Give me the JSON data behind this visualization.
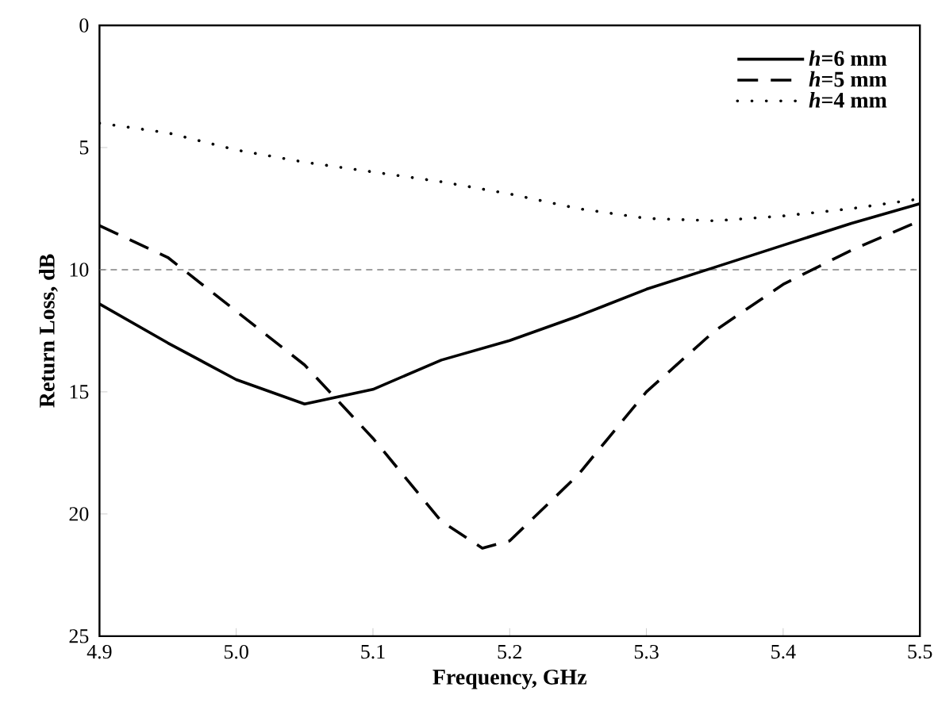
{
  "chart_data": {
    "type": "line",
    "xlabel": "Frequency, GHz",
    "ylabel": "Return Loss, dB",
    "xlim": [
      4.9,
      5.5
    ],
    "ylim": [
      25,
      0
    ],
    "xticks": [
      {
        "value": 4.9,
        "label": "4.9"
      },
      {
        "value": 5.0,
        "label": "5.0"
      },
      {
        "value": 5.1,
        "label": "5.1"
      },
      {
        "value": 5.2,
        "label": "5.2"
      },
      {
        "value": 5.3,
        "label": "5.3"
      },
      {
        "value": 5.4,
        "label": "5.4"
      },
      {
        "value": 5.5,
        "label": "5.5"
      }
    ],
    "yticks": [
      0,
      5,
      10,
      15,
      20,
      25
    ],
    "legend": "top right",
    "grid": false,
    "marker": "none",
    "ref_lines": [
      {
        "axis": "y",
        "value": 10,
        "color": "#808080",
        "line_style": "dashed"
      }
    ],
    "x": [
      4.9,
      4.95,
      5.0,
      5.05,
      5.1,
      5.15,
      5.2,
      5.25,
      5.3,
      5.35,
      5.4,
      5.45,
      5.5
    ],
    "series": [
      {
        "name": "*h*=6 mm",
        "color": "#000000",
        "line_style": "solid",
        "values": [
          11.4,
          13.0,
          14.5,
          15.5,
          14.9,
          13.7,
          12.9,
          11.9,
          10.8,
          9.9,
          9.0,
          8.1,
          7.3
        ]
      },
      {
        "name": "*h*=5 mm",
        "color": "#000000",
        "line_style": "dashed",
        "x": [
          4.9,
          4.95,
          5.0,
          5.05,
          5.1,
          5.15,
          5.18,
          5.2,
          5.25,
          5.3,
          5.35,
          5.4,
          5.45,
          5.5
        ],
        "values": [
          8.2,
          9.5,
          11.7,
          13.9,
          16.9,
          20.3,
          21.4,
          21.1,
          18.4,
          15.0,
          12.5,
          10.6,
          9.2,
          8.0
        ]
      },
      {
        "name": "*h*=4 mm",
        "color": "#000000",
        "line_style": "dotted",
        "values": [
          4.0,
          4.4,
          5.1,
          5.6,
          6.0,
          6.4,
          6.9,
          7.5,
          7.9,
          8.0,
          7.8,
          7.5,
          7.1
        ]
      }
    ]
  }
}
